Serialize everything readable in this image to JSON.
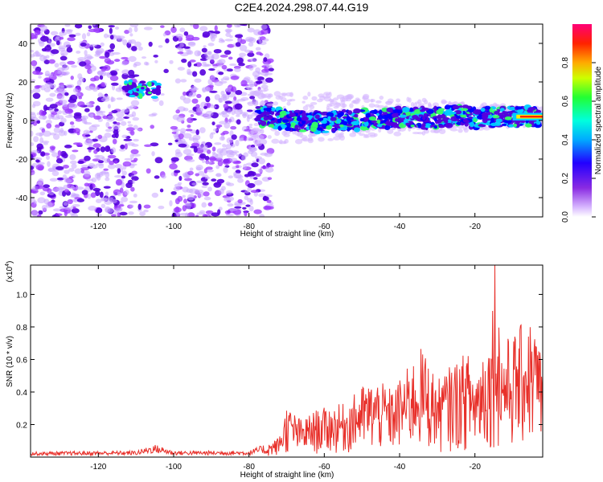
{
  "title": "C2E4.2024.298.07.44.G19",
  "chart_data": [
    {
      "type": "heatmap",
      "ylabel": "Frequency (Hz)",
      "xlabel": "Height of straight line (km)",
      "xlim": [
        -138,
        -2
      ],
      "ylim": [
        -50,
        50
      ],
      "x_ticks": [
        "-120",
        "-100",
        "-80",
        "-60",
        "-40",
        "-20"
      ],
      "x_tick_values": [
        -120,
        -100,
        -80,
        -60,
        -40,
        -20
      ],
      "y_ticks": [
        "40",
        "20",
        "0",
        "-20",
        "-40"
      ],
      "y_tick_values": [
        40,
        20,
        0,
        -20,
        -40
      ],
      "colorbar": {
        "label": "Normalized spectral amplitude",
        "range": [
          0,
          1
        ],
        "ticks": [
          "0.0",
          "0.2",
          "0.4",
          "0.6",
          "0.8"
        ],
        "tick_values": [
          0.0,
          0.2,
          0.4,
          0.6,
          0.8
        ]
      },
      "ridge": {
        "x": [
          -76,
          -72,
          -68,
          -64,
          -60,
          -56,
          -52,
          -48,
          -44,
          -40,
          -36,
          -32,
          -28,
          -24,
          -20,
          -16,
          -12,
          -8,
          -4,
          -2
        ],
        "y": [
          3,
          1,
          0,
          -1,
          -1,
          0,
          0,
          1,
          1,
          2,
          2,
          1,
          2,
          3,
          1,
          2,
          2,
          2,
          2,
          2
        ]
      },
      "blob": {
        "x": [
          -113,
          -104
        ],
        "y": [
          12,
          20
        ]
      },
      "gap": {
        "x": [
          -110,
          -100
        ]
      },
      "colors": [
        "#9933ff",
        "#5500dd",
        "#0000ff",
        "#00ccff",
        "#33ff66",
        "#ffee00",
        "#ff2200"
      ]
    },
    {
      "type": "line",
      "ylabel": "SNR (10 * v/v)",
      "xlabel": "Height of straight line (km)",
      "y_multiplier": "(x10",
      "y_multiplier_exp": "4",
      "y_multiplier_close": ")",
      "xlim": [
        -138,
        -2
      ],
      "ylim": [
        0,
        1.18
      ],
      "x_ticks": [
        "-120",
        "-100",
        "-80",
        "-60",
        "-40",
        "-20"
      ],
      "x_tick_values": [
        -120,
        -100,
        -80,
        -60,
        -40,
        -20
      ],
      "y_ticks": [
        "0.2",
        "0.4",
        "0.6",
        "0.8",
        "1.0"
      ],
      "y_tick_values": [
        0.2,
        0.4,
        0.6,
        0.8,
        1.0
      ],
      "color": "#e8302a",
      "envelope": {
        "x": [
          -138,
          -110,
          -105,
          -100,
          -80,
          -76,
          -72,
          -70,
          -66,
          -62,
          -58,
          -54,
          -50,
          -46,
          -42,
          -38,
          -34,
          -30,
          -26,
          -22,
          -20,
          -18,
          -16,
          -14.7,
          -13,
          -10,
          -6,
          -4,
          -2
        ],
        "y": [
          0.025,
          0.03,
          0.06,
          0.03,
          0.03,
          0.06,
          0.12,
          0.3,
          0.22,
          0.28,
          0.3,
          0.32,
          0.42,
          0.45,
          0.4,
          0.52,
          0.65,
          0.45,
          0.55,
          0.62,
          0.5,
          0.65,
          0.7,
          1.18,
          0.68,
          0.72,
          0.82,
          0.78,
          0.6
        ]
      },
      "peak": {
        "x": -14.7,
        "y": 1.18
      }
    }
  ]
}
